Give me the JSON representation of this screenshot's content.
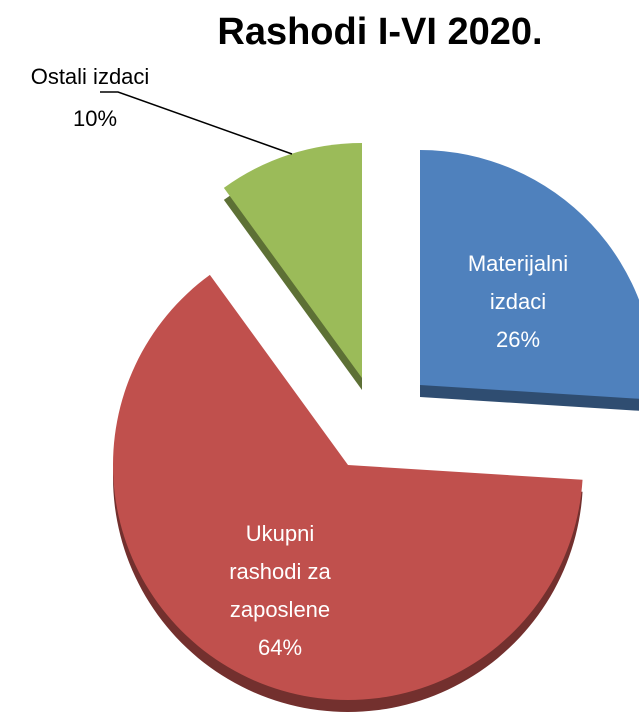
{
  "chart_data": {
    "type": "pie",
    "title": "Rashodi I-VI 2020.",
    "categories": [
      "Materijalni\nizdaci",
      "Ukupni\nrashodi za\nzaposlene",
      "Ostali izdaci"
    ],
    "values": [
      26,
      64,
      10
    ],
    "value_labels": [
      "26%",
      "64%",
      "10%"
    ],
    "colors": [
      "#4f81bd",
      "#c0504d",
      "#9bbb59"
    ]
  }
}
